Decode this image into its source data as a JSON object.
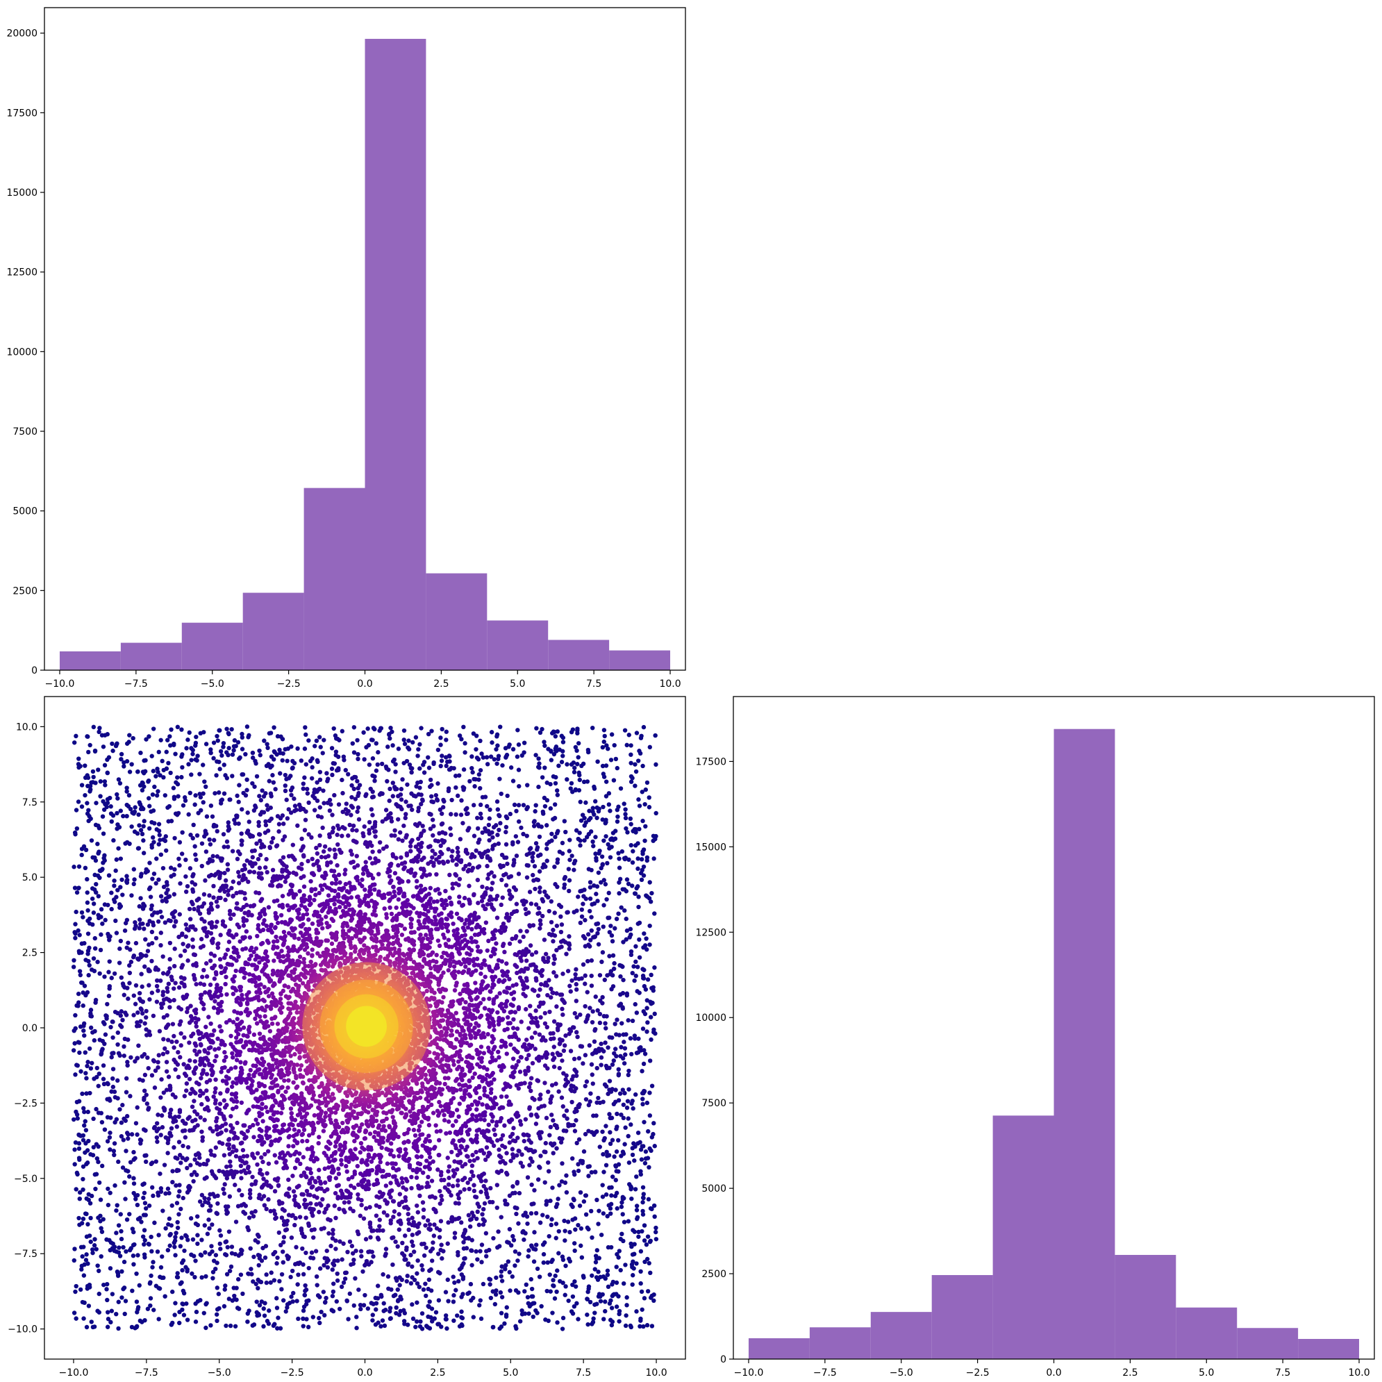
{
  "chart_data": [
    {
      "type": "bar",
      "panel": "top-left",
      "bin_edges": [
        -10,
        -8,
        -6,
        -4,
        -2,
        0,
        2,
        4,
        6,
        8,
        10
      ],
      "values": [
        590,
        860,
        1490,
        2430,
        5720,
        19820,
        3040,
        1560,
        950,
        620
      ],
      "color": "#9467bd",
      "xlim": [
        -10.5,
        10.5
      ],
      "ylim": [
        0,
        20800
      ],
      "xticks": [
        -10,
        -7.5,
        -5,
        -2.5,
        0,
        2.5,
        5,
        7.5,
        10
      ],
      "xtick_labels": [
        "−10.0",
        "−7.5",
        "−5.0",
        "−2.5",
        "0.0",
        "2.5",
        "5.0",
        "7.5",
        "10.0"
      ],
      "yticks": [
        0,
        2500,
        5000,
        7500,
        10000,
        12500,
        15000,
        17500,
        20000
      ],
      "ytick_labels": [
        "0",
        "2500",
        "5000",
        "7500",
        "10000",
        "12500",
        "15000",
        "17500",
        "20000"
      ]
    },
    {
      "type": "scatter",
      "panel": "bottom-left",
      "description_of_data": "density-colored point cloud",
      "x_range": [
        -10,
        10
      ],
      "y_range": [
        -10,
        10
      ],
      "center": [
        0,
        0
      ],
      "colormap": [
        "#0d0887",
        "#5c01a6",
        "#9c179e",
        "#cc4778",
        "#ed7953",
        "#fdb42f",
        "#f0f921"
      ],
      "xlim": [
        -11,
        11
      ],
      "ylim": [
        -11,
        11
      ],
      "xticks": [
        -10,
        -7.5,
        -5,
        -2.5,
        0,
        2.5,
        5,
        7.5,
        10
      ],
      "xtick_labels": [
        "−10.0",
        "−7.5",
        "−5.0",
        "−2.5",
        "0.0",
        "2.5",
        "5.0",
        "7.5",
        "10.0"
      ],
      "yticks": [
        -10,
        -7.5,
        -5,
        -2.5,
        0,
        2.5,
        5,
        7.5,
        10
      ],
      "ytick_labels": [
        "−10.0",
        "−7.5",
        "−5.0",
        "−2.5",
        "0.0",
        "2.5",
        "5.0",
        "7.5",
        "10.0"
      ]
    },
    {
      "type": "bar",
      "panel": "bottom-right",
      "bin_edges": [
        -10,
        -8,
        -6,
        -4,
        -2,
        0,
        2,
        4,
        6,
        8,
        10
      ],
      "values": [
        610,
        930,
        1380,
        2460,
        7130,
        18450,
        3050,
        1510,
        910,
        590
      ],
      "color": "#9467bd",
      "xlim": [
        -10.5,
        10.5
      ],
      "ylim": [
        0,
        19400
      ],
      "xticks": [
        -10,
        -7.5,
        -5,
        -2.5,
        0,
        2.5,
        5,
        7.5,
        10
      ],
      "xtick_labels": [
        "−10.0",
        "−7.5",
        "−5.0",
        "−2.5",
        "0.0",
        "2.5",
        "5.0",
        "7.5",
        "10.0"
      ],
      "yticks": [
        0,
        2500,
        5000,
        7500,
        10000,
        12500,
        15000,
        17500
      ],
      "ytick_labels": [
        "0",
        "2500",
        "5000",
        "7500",
        "10000",
        "12500",
        "15000",
        "17500"
      ]
    }
  ]
}
